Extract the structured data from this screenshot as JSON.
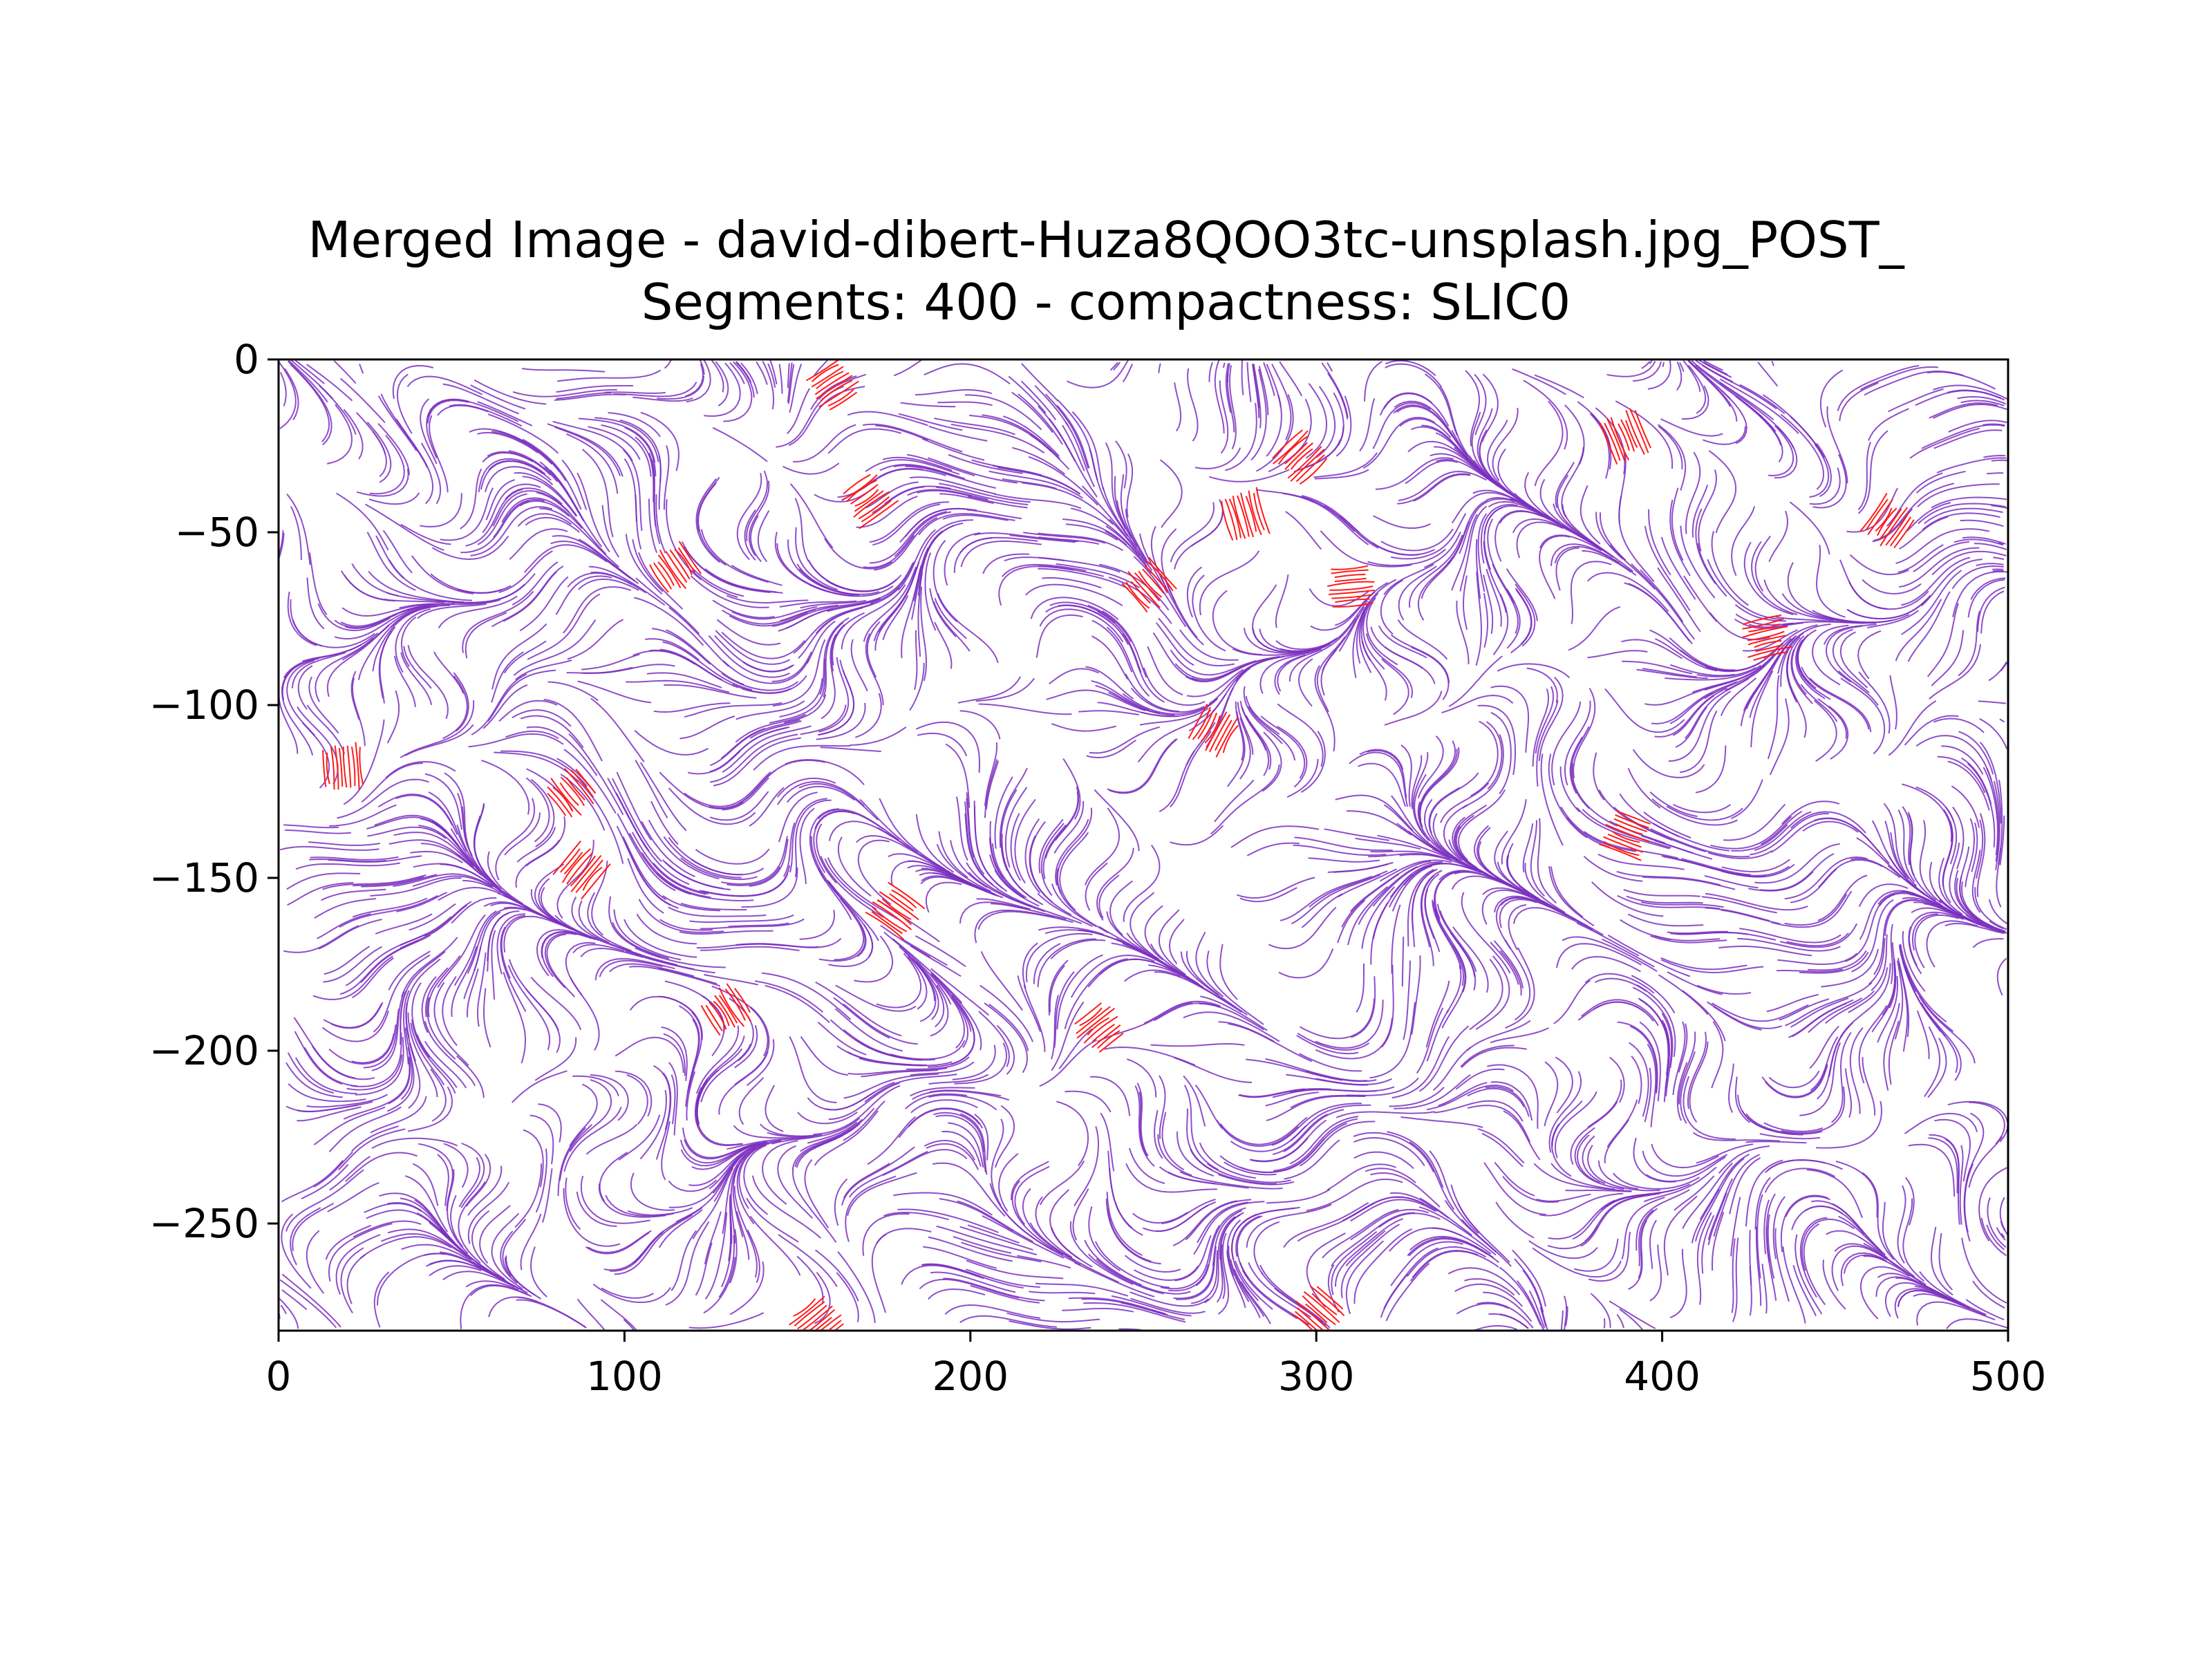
{
  "chart_data": {
    "type": "streamline",
    "title": "Merged Image - david-dibert-Huza8QOO3tc-unsplash.jpg_POST_",
    "subtitle": "Segments: 400 - compactness: SLIC0",
    "xlabel": "",
    "ylabel": "",
    "xlim": [
      0,
      500
    ],
    "ylim": [
      -281,
      0
    ],
    "x_ticks": [
      0,
      100,
      200,
      300,
      400,
      500
    ],
    "y_ticks": [
      0,
      -50,
      -100,
      -150,
      -200,
      -250
    ],
    "x_tick_labels": [
      "0",
      "100",
      "200",
      "300",
      "400",
      "500"
    ],
    "y_tick_labels": [
      "0",
      "−50",
      "−100",
      "−150",
      "−200",
      "−250"
    ],
    "grid": false,
    "colors": {
      "stream": "#7b2fbf",
      "highlight": "#ff1a1a",
      "axes": "#000000"
    },
    "highlight_regions": [
      {
        "x": 160,
        "y": -7
      },
      {
        "x": 170,
        "y": -40
      },
      {
        "x": 115,
        "y": -60
      },
      {
        "x": 295,
        "y": -28
      },
      {
        "x": 280,
        "y": -45
      },
      {
        "x": 252,
        "y": -65
      },
      {
        "x": 310,
        "y": -65
      },
      {
        "x": 390,
        "y": -22
      },
      {
        "x": 465,
        "y": -47
      },
      {
        "x": 430,
        "y": -80
      },
      {
        "x": 270,
        "y": -107
      },
      {
        "x": 18,
        "y": -118
      },
      {
        "x": 85,
        "y": -125
      },
      {
        "x": 88,
        "y": -148
      },
      {
        "x": 178,
        "y": -160
      },
      {
        "x": 130,
        "y": -188
      },
      {
        "x": 237,
        "y": -193
      },
      {
        "x": 390,
        "y": -137
      },
      {
        "x": 300,
        "y": -276
      },
      {
        "x": 155,
        "y": -278
      }
    ]
  }
}
